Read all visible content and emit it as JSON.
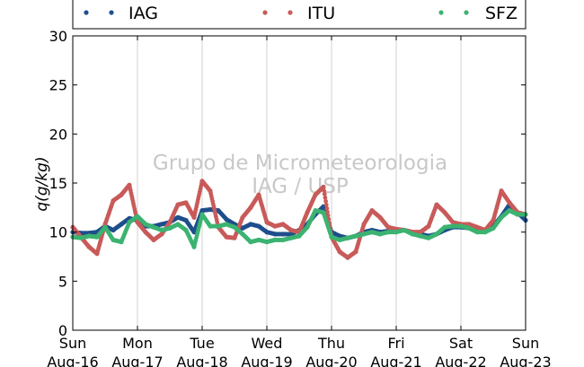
{
  "chart_data": {
    "type": "scatter",
    "ylabel": "q(g/kg)",
    "ylim": [
      0,
      30
    ],
    "yticks": [
      0,
      5,
      10,
      15,
      20,
      25,
      30
    ],
    "xlim": [
      "2015-08-16",
      "2015-08-23"
    ],
    "xticks": [
      {
        "date": "2015-08-16",
        "day": "Sun",
        "label": "Aug-16"
      },
      {
        "date": "2015-08-17",
        "day": "Mon",
        "label": "Aug-17"
      },
      {
        "date": "2015-08-18",
        "day": "Tue",
        "label": "Aug-18"
      },
      {
        "date": "2015-08-19",
        "day": "Wed",
        "label": "Aug-19"
      },
      {
        "date": "2015-08-20",
        "day": "Thu",
        "label": "Aug-20"
      },
      {
        "date": "2015-08-21",
        "day": "Fri",
        "label": "Aug-21"
      },
      {
        "date": "2015-08-22",
        "day": "Sat",
        "label": "Aug-22"
      },
      {
        "date": "2015-08-23",
        "day": "Sun",
        "label": "Aug-23"
      }
    ],
    "grid": "vertical",
    "legend_position": "top",
    "watermark": [
      "Grupo de Micrometeorologia",
      "IAG / USP"
    ],
    "series": [
      {
        "name": "IAG",
        "color": "#1f4e8c",
        "points": [
          [
            "2015-08-16 00:00",
            10.0
          ],
          [
            "2015-08-16 03:00",
            9.9
          ],
          [
            "2015-08-16 06:00",
            9.9
          ],
          [
            "2015-08-16 09:00",
            10.0
          ],
          [
            "2015-08-16 12:00",
            10.6
          ],
          [
            "2015-08-16 15:00",
            10.2
          ],
          [
            "2015-08-16 18:00",
            10.8
          ],
          [
            "2015-08-16 21:00",
            11.4
          ],
          [
            "2015-08-17 00:00",
            11.2
          ],
          [
            "2015-08-17 03:00",
            10.6
          ],
          [
            "2015-08-17 06:00",
            10.6
          ],
          [
            "2015-08-17 09:00",
            10.8
          ],
          [
            "2015-08-17 12:00",
            11.0
          ],
          [
            "2015-08-17 15:00",
            11.5
          ],
          [
            "2015-08-17 18:00",
            11.2
          ],
          [
            "2015-08-17 21:00",
            10.0
          ],
          [
            "2015-08-18 00:00",
            12.2
          ],
          [
            "2015-08-18 03:00",
            12.3
          ],
          [
            "2015-08-18 06:00",
            12.2
          ],
          [
            "2015-08-18 09:00",
            11.3
          ],
          [
            "2015-08-18 12:00",
            10.8
          ],
          [
            "2015-08-18 15:00",
            10.4
          ],
          [
            "2015-08-18 18:00",
            10.8
          ],
          [
            "2015-08-18 21:00",
            10.6
          ],
          [
            "2015-08-19 00:00",
            10.0
          ],
          [
            "2015-08-19 03:00",
            9.8
          ],
          [
            "2015-08-19 06:00",
            9.8
          ],
          [
            "2015-08-19 09:00",
            9.8
          ],
          [
            "2015-08-19 12:00",
            10.2
          ],
          [
            "2015-08-19 15:00",
            10.8
          ],
          [
            "2015-08-19 18:00",
            11.8
          ],
          [
            "2015-08-19 21:00",
            12.6
          ],
          [
            "2015-08-20 00:00",
            10.0
          ],
          [
            "2015-08-20 03:00",
            9.6
          ],
          [
            "2015-08-20 06:00",
            9.4
          ],
          [
            "2015-08-20 09:00",
            9.6
          ],
          [
            "2015-08-20 12:00",
            10.0
          ],
          [
            "2015-08-20 15:00",
            10.2
          ],
          [
            "2015-08-20 18:00",
            10.0
          ],
          [
            "2015-08-20 21:00",
            10.1
          ],
          [
            "2015-08-21 00:00",
            10.2
          ],
          [
            "2015-08-21 03:00",
            10.2
          ],
          [
            "2015-08-21 06:00",
            10.0
          ],
          [
            "2015-08-21 09:00",
            9.8
          ],
          [
            "2015-08-21 12:00",
            9.6
          ],
          [
            "2015-08-21 15:00",
            9.8
          ],
          [
            "2015-08-21 18:00",
            10.2
          ],
          [
            "2015-08-21 21:00",
            10.5
          ],
          [
            "2015-08-22 00:00",
            10.5
          ],
          [
            "2015-08-22 03:00",
            10.4
          ],
          [
            "2015-08-22 06:00",
            10.2
          ],
          [
            "2015-08-22 09:00",
            10.2
          ],
          [
            "2015-08-22 12:00",
            10.6
          ],
          [
            "2015-08-22 15:00",
            11.6
          ],
          [
            "2015-08-22 18:00",
            12.8
          ],
          [
            "2015-08-22 21:00",
            12.0
          ],
          [
            "2015-08-23 00:00",
            11.2
          ]
        ]
      },
      {
        "name": "ITU",
        "color": "#c85a5a",
        "points": [
          [
            "2015-08-16 00:00",
            10.5
          ],
          [
            "2015-08-16 03:00",
            9.5
          ],
          [
            "2015-08-16 06:00",
            8.5
          ],
          [
            "2015-08-16 09:00",
            7.8
          ],
          [
            "2015-08-16 12:00",
            10.8
          ],
          [
            "2015-08-16 15:00",
            13.2
          ],
          [
            "2015-08-16 18:00",
            13.8
          ],
          [
            "2015-08-16 21:00",
            14.8
          ],
          [
            "2015-08-17 00:00",
            11.0
          ],
          [
            "2015-08-17 03:00",
            10.0
          ],
          [
            "2015-08-17 06:00",
            9.2
          ],
          [
            "2015-08-17 09:00",
            9.8
          ],
          [
            "2015-08-17 12:00",
            11.0
          ],
          [
            "2015-08-17 15:00",
            12.8
          ],
          [
            "2015-08-17 18:00",
            13.0
          ],
          [
            "2015-08-17 21:00",
            11.5
          ],
          [
            "2015-08-18 00:00",
            15.2
          ],
          [
            "2015-08-18 03:00",
            14.2
          ],
          [
            "2015-08-18 06:00",
            10.5
          ],
          [
            "2015-08-18 09:00",
            9.5
          ],
          [
            "2015-08-18 12:00",
            9.4
          ],
          [
            "2015-08-18 15:00",
            11.5
          ],
          [
            "2015-08-18 18:00",
            12.5
          ],
          [
            "2015-08-18 21:00",
            13.8
          ],
          [
            "2015-08-19 00:00",
            11.0
          ],
          [
            "2015-08-19 03:00",
            10.6
          ],
          [
            "2015-08-19 06:00",
            10.8
          ],
          [
            "2015-08-19 09:00",
            10.2
          ],
          [
            "2015-08-19 12:00",
            10.0
          ],
          [
            "2015-08-19 15:00",
            12.0
          ],
          [
            "2015-08-19 18:00",
            13.8
          ],
          [
            "2015-08-19 21:00",
            14.6
          ],
          [
            "2015-08-20 00:00",
            9.5
          ],
          [
            "2015-08-20 03:00",
            8.0
          ],
          [
            "2015-08-20 06:00",
            7.4
          ],
          [
            "2015-08-20 09:00",
            8.0
          ],
          [
            "2015-08-20 12:00",
            10.8
          ],
          [
            "2015-08-20 15:00",
            12.2
          ],
          [
            "2015-08-20 18:00",
            11.5
          ],
          [
            "2015-08-20 21:00",
            10.5
          ],
          [
            "2015-08-21 00:00",
            10.3
          ],
          [
            "2015-08-21 03:00",
            10.2
          ],
          [
            "2015-08-21 06:00",
            10.0
          ],
          [
            "2015-08-21 09:00",
            10.0
          ],
          [
            "2015-08-21 12:00",
            10.6
          ],
          [
            "2015-08-21 15:00",
            12.8
          ],
          [
            "2015-08-21 18:00",
            12.0
          ],
          [
            "2015-08-21 21:00",
            11.0
          ],
          [
            "2015-08-22 00:00",
            10.8
          ],
          [
            "2015-08-22 03:00",
            10.8
          ],
          [
            "2015-08-22 06:00",
            10.5
          ],
          [
            "2015-08-22 09:00",
            10.2
          ],
          [
            "2015-08-22 12:00",
            11.2
          ],
          [
            "2015-08-22 15:00",
            14.2
          ],
          [
            "2015-08-22 18:00",
            13.0
          ],
          [
            "2015-08-22 21:00",
            12.0
          ],
          [
            "2015-08-23 00:00",
            11.8
          ]
        ]
      },
      {
        "name": "SFZ",
        "color": "#3cb371",
        "points": [
          [
            "2015-08-16 00:00",
            9.5
          ],
          [
            "2015-08-16 03:00",
            9.4
          ],
          [
            "2015-08-16 06:00",
            9.6
          ],
          [
            "2015-08-16 09:00",
            9.5
          ],
          [
            "2015-08-16 12:00",
            10.5
          ],
          [
            "2015-08-16 15:00",
            9.2
          ],
          [
            "2015-08-16 18:00",
            9.0
          ],
          [
            "2015-08-16 21:00",
            11.0
          ],
          [
            "2015-08-17 00:00",
            11.6
          ],
          [
            "2015-08-17 03:00",
            10.8
          ],
          [
            "2015-08-17 06:00",
            10.5
          ],
          [
            "2015-08-17 09:00",
            10.2
          ],
          [
            "2015-08-17 12:00",
            10.4
          ],
          [
            "2015-08-17 15:00",
            10.8
          ],
          [
            "2015-08-17 18:00",
            10.2
          ],
          [
            "2015-08-17 21:00",
            8.5
          ],
          [
            "2015-08-18 00:00",
            11.8
          ],
          [
            "2015-08-18 03:00",
            10.6
          ],
          [
            "2015-08-18 06:00",
            10.6
          ],
          [
            "2015-08-18 09:00",
            10.8
          ],
          [
            "2015-08-18 12:00",
            10.5
          ],
          [
            "2015-08-18 15:00",
            9.8
          ],
          [
            "2015-08-18 18:00",
            9.0
          ],
          [
            "2015-08-18 21:00",
            9.2
          ],
          [
            "2015-08-19 00:00",
            9.0
          ],
          [
            "2015-08-19 03:00",
            9.2
          ],
          [
            "2015-08-19 06:00",
            9.2
          ],
          [
            "2015-08-19 09:00",
            9.4
          ],
          [
            "2015-08-19 12:00",
            9.6
          ],
          [
            "2015-08-19 15:00",
            10.5
          ],
          [
            "2015-08-19 18:00",
            12.2
          ],
          [
            "2015-08-19 21:00",
            12.0
          ],
          [
            "2015-08-20 00:00",
            9.5
          ],
          [
            "2015-08-20 03:00",
            9.2
          ],
          [
            "2015-08-20 06:00",
            9.4
          ],
          [
            "2015-08-20 09:00",
            9.6
          ],
          [
            "2015-08-20 12:00",
            9.8
          ],
          [
            "2015-08-20 15:00",
            10.0
          ],
          [
            "2015-08-20 18:00",
            9.8
          ],
          [
            "2015-08-20 21:00",
            10.0
          ],
          [
            "2015-08-21 00:00",
            10.0
          ],
          [
            "2015-08-21 03:00",
            10.2
          ],
          [
            "2015-08-21 06:00",
            9.8
          ],
          [
            "2015-08-21 09:00",
            9.6
          ],
          [
            "2015-08-21 12:00",
            9.4
          ],
          [
            "2015-08-21 15:00",
            9.8
          ],
          [
            "2015-08-21 18:00",
            10.5
          ],
          [
            "2015-08-21 21:00",
            10.6
          ],
          [
            "2015-08-22 00:00",
            10.6
          ],
          [
            "2015-08-22 03:00",
            10.4
          ],
          [
            "2015-08-22 06:00",
            10.0
          ],
          [
            "2015-08-22 09:00",
            10.0
          ],
          [
            "2015-08-22 12:00",
            10.4
          ],
          [
            "2015-08-22 15:00",
            11.5
          ],
          [
            "2015-08-22 18:00",
            12.2
          ],
          [
            "2015-08-22 21:00",
            11.8
          ],
          [
            "2015-08-23 00:00",
            11.8
          ]
        ]
      }
    ]
  }
}
